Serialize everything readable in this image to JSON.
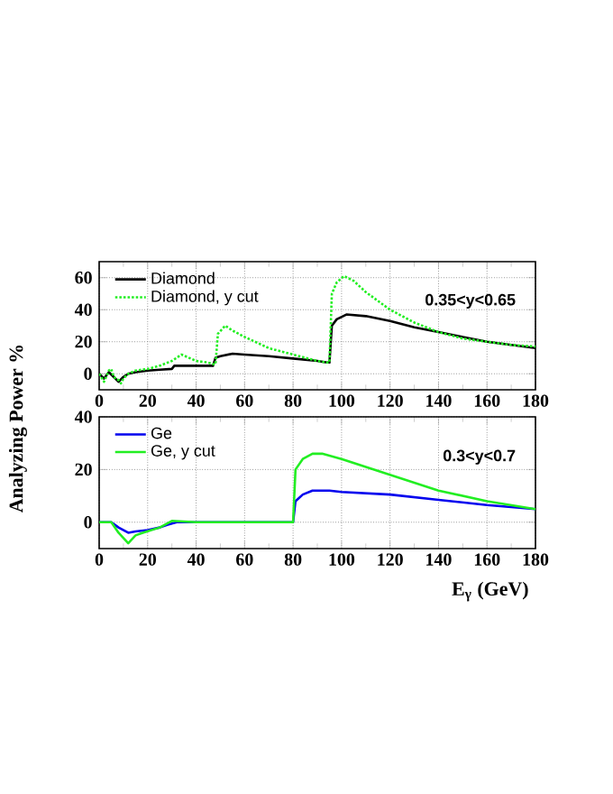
{
  "chart_data": [
    {
      "type": "line",
      "ylabel": "Analyzing Power %",
      "xlim": [
        0,
        180
      ],
      "ylim": [
        -10,
        70
      ],
      "xticks": [
        0,
        20,
        40,
        60,
        80,
        100,
        120,
        140,
        160,
        180
      ],
      "yticks": [
        0,
        20,
        40,
        60
      ],
      "grid": true,
      "legend": "top left",
      "annotations": [
        "0.35<y<0.65"
      ],
      "series": [
        {
          "name": "Diamond",
          "color": "#000000",
          "line_style": "solid",
          "x": [
            0,
            2,
            4,
            6,
            8,
            10,
            12,
            15,
            20,
            25,
            30,
            31,
            35,
            40,
            47,
            48,
            50,
            55,
            60,
            70,
            80,
            90,
            94,
            95,
            96,
            98,
            102,
            110,
            120,
            130,
            140,
            150,
            160,
            170,
            180
          ],
          "values": [
            0,
            -3,
            1,
            -2,
            -5,
            -2,
            0,
            1,
            2,
            2.5,
            3,
            5,
            5,
            5,
            5,
            10,
            11,
            12.5,
            12,
            11,
            9.5,
            8,
            7,
            7,
            30,
            34,
            37,
            36,
            33,
            29,
            26,
            23,
            20,
            18,
            16
          ]
        },
        {
          "name": "Diamond, y cut",
          "color": "#22ee22",
          "line_style": "dotted",
          "x": [
            0,
            2,
            4,
            5,
            6,
            8,
            9,
            10,
            12,
            15,
            20,
            25,
            30,
            34,
            40,
            45,
            47,
            48,
            49,
            52,
            55,
            60,
            70,
            80,
            90,
            94,
            95,
            96,
            98,
            101,
            105,
            110,
            120,
            130,
            140,
            150,
            160,
            170,
            180
          ],
          "values": [
            0,
            -5,
            2,
            3,
            -2,
            -4,
            -6,
            -3,
            0,
            2,
            3,
            5,
            8,
            12,
            8,
            7,
            6,
            6,
            25,
            30,
            27,
            23,
            16,
            12,
            8,
            7,
            7,
            50,
            57,
            61,
            58,
            51,
            40,
            32,
            26,
            22,
            20,
            18,
            17
          ]
        }
      ]
    },
    {
      "type": "line",
      "xlabel": "E$_{γ}$ (GeV)",
      "xlim": [
        0,
        180
      ],
      "ylim": [
        -10,
        40
      ],
      "xticks": [
        0,
        20,
        40,
        60,
        80,
        100,
        120,
        140,
        160,
        180
      ],
      "yticks": [
        0,
        20,
        40
      ],
      "grid": true,
      "legend": "top left",
      "annotations": [
        "0.3<y<0.7"
      ],
      "series": [
        {
          "name": "Ge",
          "color": "#0000ee",
          "line_style": "solid",
          "x": [
            0,
            5,
            8,
            12,
            15,
            20,
            25,
            28,
            32,
            40,
            60,
            79,
            80,
            81,
            84,
            88,
            95,
            100,
            120,
            140,
            160,
            180
          ],
          "values": [
            0,
            0,
            -2,
            -4,
            -3.5,
            -3,
            -2,
            -1,
            0,
            0,
            0,
            0,
            0,
            8,
            10.5,
            12,
            12,
            11.5,
            10.5,
            8.5,
            6.5,
            5
          ]
        },
        {
          "name": "Ge, y cut",
          "color": "#22ee22",
          "line_style": "solid",
          "x": [
            0,
            5,
            8,
            12,
            15,
            18,
            25,
            30,
            40,
            60,
            79,
            80,
            81,
            84,
            88,
            92,
            100,
            120,
            140,
            160,
            180
          ],
          "values": [
            0,
            0,
            -4,
            -8,
            -5,
            -4,
            -2,
            0.5,
            0,
            0,
            0,
            0,
            20,
            24,
            26,
            26,
            24,
            18,
            12,
            8,
            5
          ]
        }
      ]
    }
  ]
}
